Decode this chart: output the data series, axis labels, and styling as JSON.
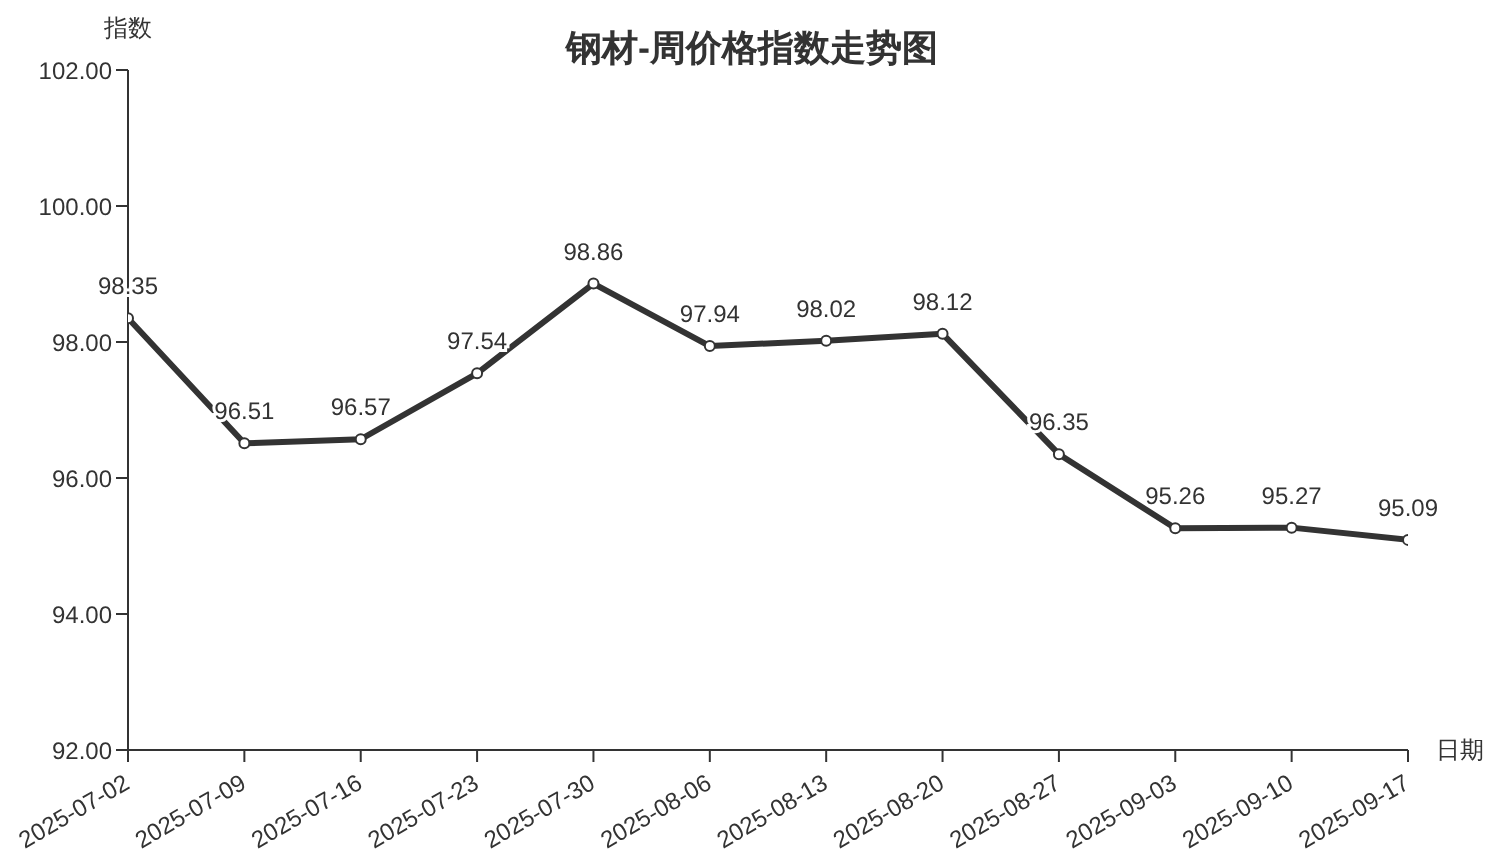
{
  "chart_data": {
    "type": "line",
    "title": "钢材-周价格指数走势图",
    "xlabel": "日期",
    "ylabel": "指数",
    "categories": [
      "2025-07-02",
      "2025-07-09",
      "2025-07-16",
      "2025-07-23",
      "2025-07-30",
      "2025-08-06",
      "2025-08-13",
      "2025-08-20",
      "2025-08-27",
      "2025-09-03",
      "2025-09-10",
      "2025-09-17"
    ],
    "series": [
      {
        "color": "#333333",
        "values": [
          98.35,
          96.51,
          96.57,
          97.54,
          98.86,
          97.94,
          98.02,
          98.12,
          96.35,
          95.26,
          95.27,
          95.09
        ]
      }
    ],
    "ylim": [
      92,
      102
    ],
    "yticks": [
      {
        "value": 92,
        "label": "92.00"
      },
      {
        "value": 94,
        "label": "94.00"
      },
      {
        "value": 96,
        "label": "96.00"
      },
      {
        "value": 98,
        "label": "98.00"
      },
      {
        "value": 100,
        "label": "100.00"
      },
      {
        "value": 102,
        "label": "102.00"
      }
    ],
    "grid": false,
    "legend": false,
    "marker": "circle",
    "line_style": "solid",
    "data_labels": true
  }
}
